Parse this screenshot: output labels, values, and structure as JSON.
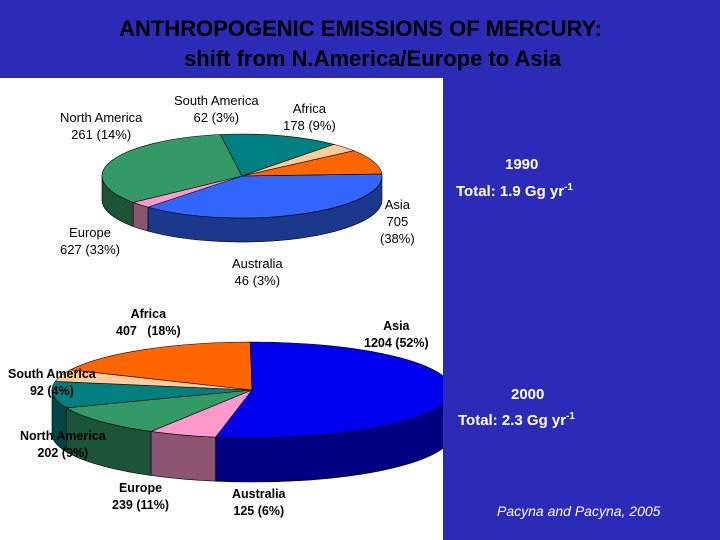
{
  "title_line1": "ANTHROPOGENIC EMISSIONS OF MERCURY:",
  "title_line2": "shift from N.America/Europe to Asia",
  "chart_data": [
    {
      "type": "pie",
      "year": "1990",
      "total_label": "Total:  1.9 Gg yr",
      "total_exp": "-1",
      "slices": [
        {
          "name": "Asia",
          "value": 705,
          "pct": "(38%)",
          "value_text": "705",
          "color": "#3366ff"
        },
        {
          "name": "Australia",
          "value": 46,
          "pct": "(3%)",
          "value_text": "46",
          "color": "#ff99cc"
        },
        {
          "name": "Europe",
          "value": 627,
          "pct": "(33%)",
          "value_text": "627",
          "color": "#339966"
        },
        {
          "name": "North America",
          "value": 261,
          "pct": "(14%)",
          "value_text": "261",
          "color": "#008080"
        },
        {
          "name": "South America",
          "value": 62,
          "pct": "(3%)",
          "value_text": "62",
          "color": "#ffcc99"
        },
        {
          "name": "Africa",
          "value": 178,
          "pct": "(9%)",
          "value_text": "178",
          "color": "#ff6600"
        }
      ]
    },
    {
      "type": "pie",
      "year": "2000",
      "total_label": "Total:  2.3 Gg yr",
      "total_exp": "-1",
      "slices": [
        {
          "name": "Asia",
          "value": 1204,
          "pct": "(52%)",
          "value_text": "1204",
          "color": "#0000ee"
        },
        {
          "name": "Australia",
          "value": 125,
          "pct": "(6%)",
          "value_text": "125",
          "color": "#ff99cc"
        },
        {
          "name": "Europe",
          "value": 239,
          "pct": "(11%)",
          "value_text": "239",
          "color": "#339966"
        },
        {
          "name": "North America",
          "value": 202,
          "pct": "(9%)",
          "value_text": "202",
          "color": "#008080"
        },
        {
          "name": "South America",
          "value": 92,
          "pct": "(4%)",
          "value_text": "92",
          "color": "#ffcc99"
        },
        {
          "name": "Africa",
          "value": 407,
          "pct": "(18%)",
          "value_text": "407",
          "color": "#ff6600"
        }
      ]
    }
  ],
  "source": "Pacyna and Pacyna, 2005"
}
